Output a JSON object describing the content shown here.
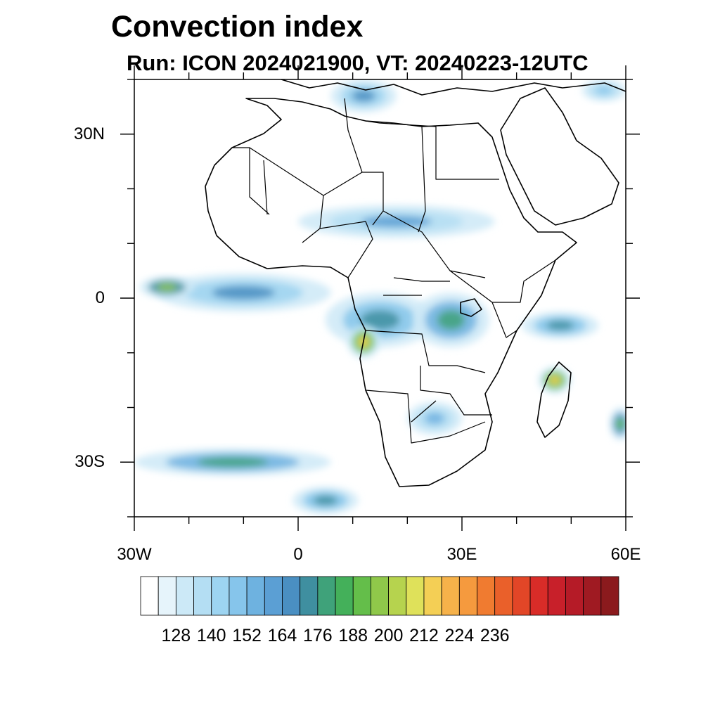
{
  "title": "Convection index",
  "subtitle": "Run: ICON 2024021900,  VT: 20240223-12UTC",
  "map": {
    "lon_range": [
      -30,
      60
    ],
    "lat_range": [
      -40,
      40
    ],
    "x_ticks": [
      {
        "lon": -30,
        "label": "30W"
      },
      {
        "lon": 0,
        "label": "0"
      },
      {
        "lon": 30,
        "label": "30E"
      },
      {
        "lon": 60,
        "label": "60E"
      }
    ],
    "y_ticks": [
      {
        "lat": 30,
        "label": "30N"
      },
      {
        "lat": 0,
        "label": "0"
      },
      {
        "lat": -30,
        "label": "30S"
      }
    ],
    "minor_tick_step_deg": 10
  },
  "colorbar": {
    "colors": [
      "#ffffff",
      "#e6f4fb",
      "#cce9f7",
      "#b4def3",
      "#9dd4f1",
      "#86c5eb",
      "#6eb2e0",
      "#5b9fd4",
      "#4a8fc2",
      "#3f8fa0",
      "#3fa27a",
      "#44b05a",
      "#64be4a",
      "#8fc84a",
      "#b6d34e",
      "#dfe15a",
      "#f4cf55",
      "#f6b24a",
      "#f59a3e",
      "#f07b30",
      "#ea602a",
      "#e24627",
      "#d92c28",
      "#c8202a",
      "#b51b27",
      "#9f1a22",
      "#8b1a1d"
    ],
    "labels": [
      "128",
      "140",
      "152",
      "164",
      "176",
      "188",
      "200",
      "212",
      "224",
      "236"
    ]
  },
  "convection_regions": [
    {
      "name": "gulf-of-guinea-band",
      "lon": -10,
      "lat": 1,
      "rx": 16,
      "ry": 3.5,
      "level": 8
    },
    {
      "name": "west-atlantic-cell",
      "lon": -24,
      "lat": 2,
      "rx": 5,
      "ry": 2,
      "level": 13
    },
    {
      "name": "congo-basin",
      "lon": 15,
      "lat": -4,
      "rx": 10,
      "ry": 5,
      "level": 9
    },
    {
      "name": "east-africa-lakes",
      "lon": 28,
      "lat": -4,
      "rx": 7,
      "ry": 5,
      "level": 10
    },
    {
      "name": "angola-coast",
      "lon": 12,
      "lat": -8,
      "rx": 3,
      "ry": 3,
      "level": 16
    },
    {
      "name": "sahara-jet-band",
      "lon": 18,
      "lat": 14,
      "rx": 18,
      "ry": 3,
      "level": 7
    },
    {
      "name": "mediterranean-band",
      "lon": 12,
      "lat": 37,
      "rx": 6,
      "ry": 3,
      "level": 8
    },
    {
      "name": "madagascar-cell",
      "lon": 47,
      "lat": -15,
      "rx": 3,
      "ry": 2.5,
      "level": 16
    },
    {
      "name": "indian-ocean-band",
      "lon": 48,
      "lat": -5,
      "rx": 7,
      "ry": 2.5,
      "level": 9
    },
    {
      "name": "south-atlantic-band",
      "lon": -12,
      "lat": -30,
      "rx": 18,
      "ry": 2.5,
      "level": 10
    },
    {
      "name": "south-atlantic-front",
      "lon": 5,
      "lat": -37,
      "rx": 6,
      "ry": 2.5,
      "level": 9
    },
    {
      "name": "southern-africa",
      "lon": 25,
      "lat": -22,
      "rx": 5,
      "ry": 3,
      "level": 6
    },
    {
      "name": "arabia-edge",
      "lon": 56,
      "lat": 38,
      "rx": 4,
      "ry": 2,
      "level": 5
    },
    {
      "name": "mozambique-channel-east",
      "lon": 59,
      "lat": -23,
      "rx": 2,
      "ry": 3,
      "level": 12
    }
  ]
}
